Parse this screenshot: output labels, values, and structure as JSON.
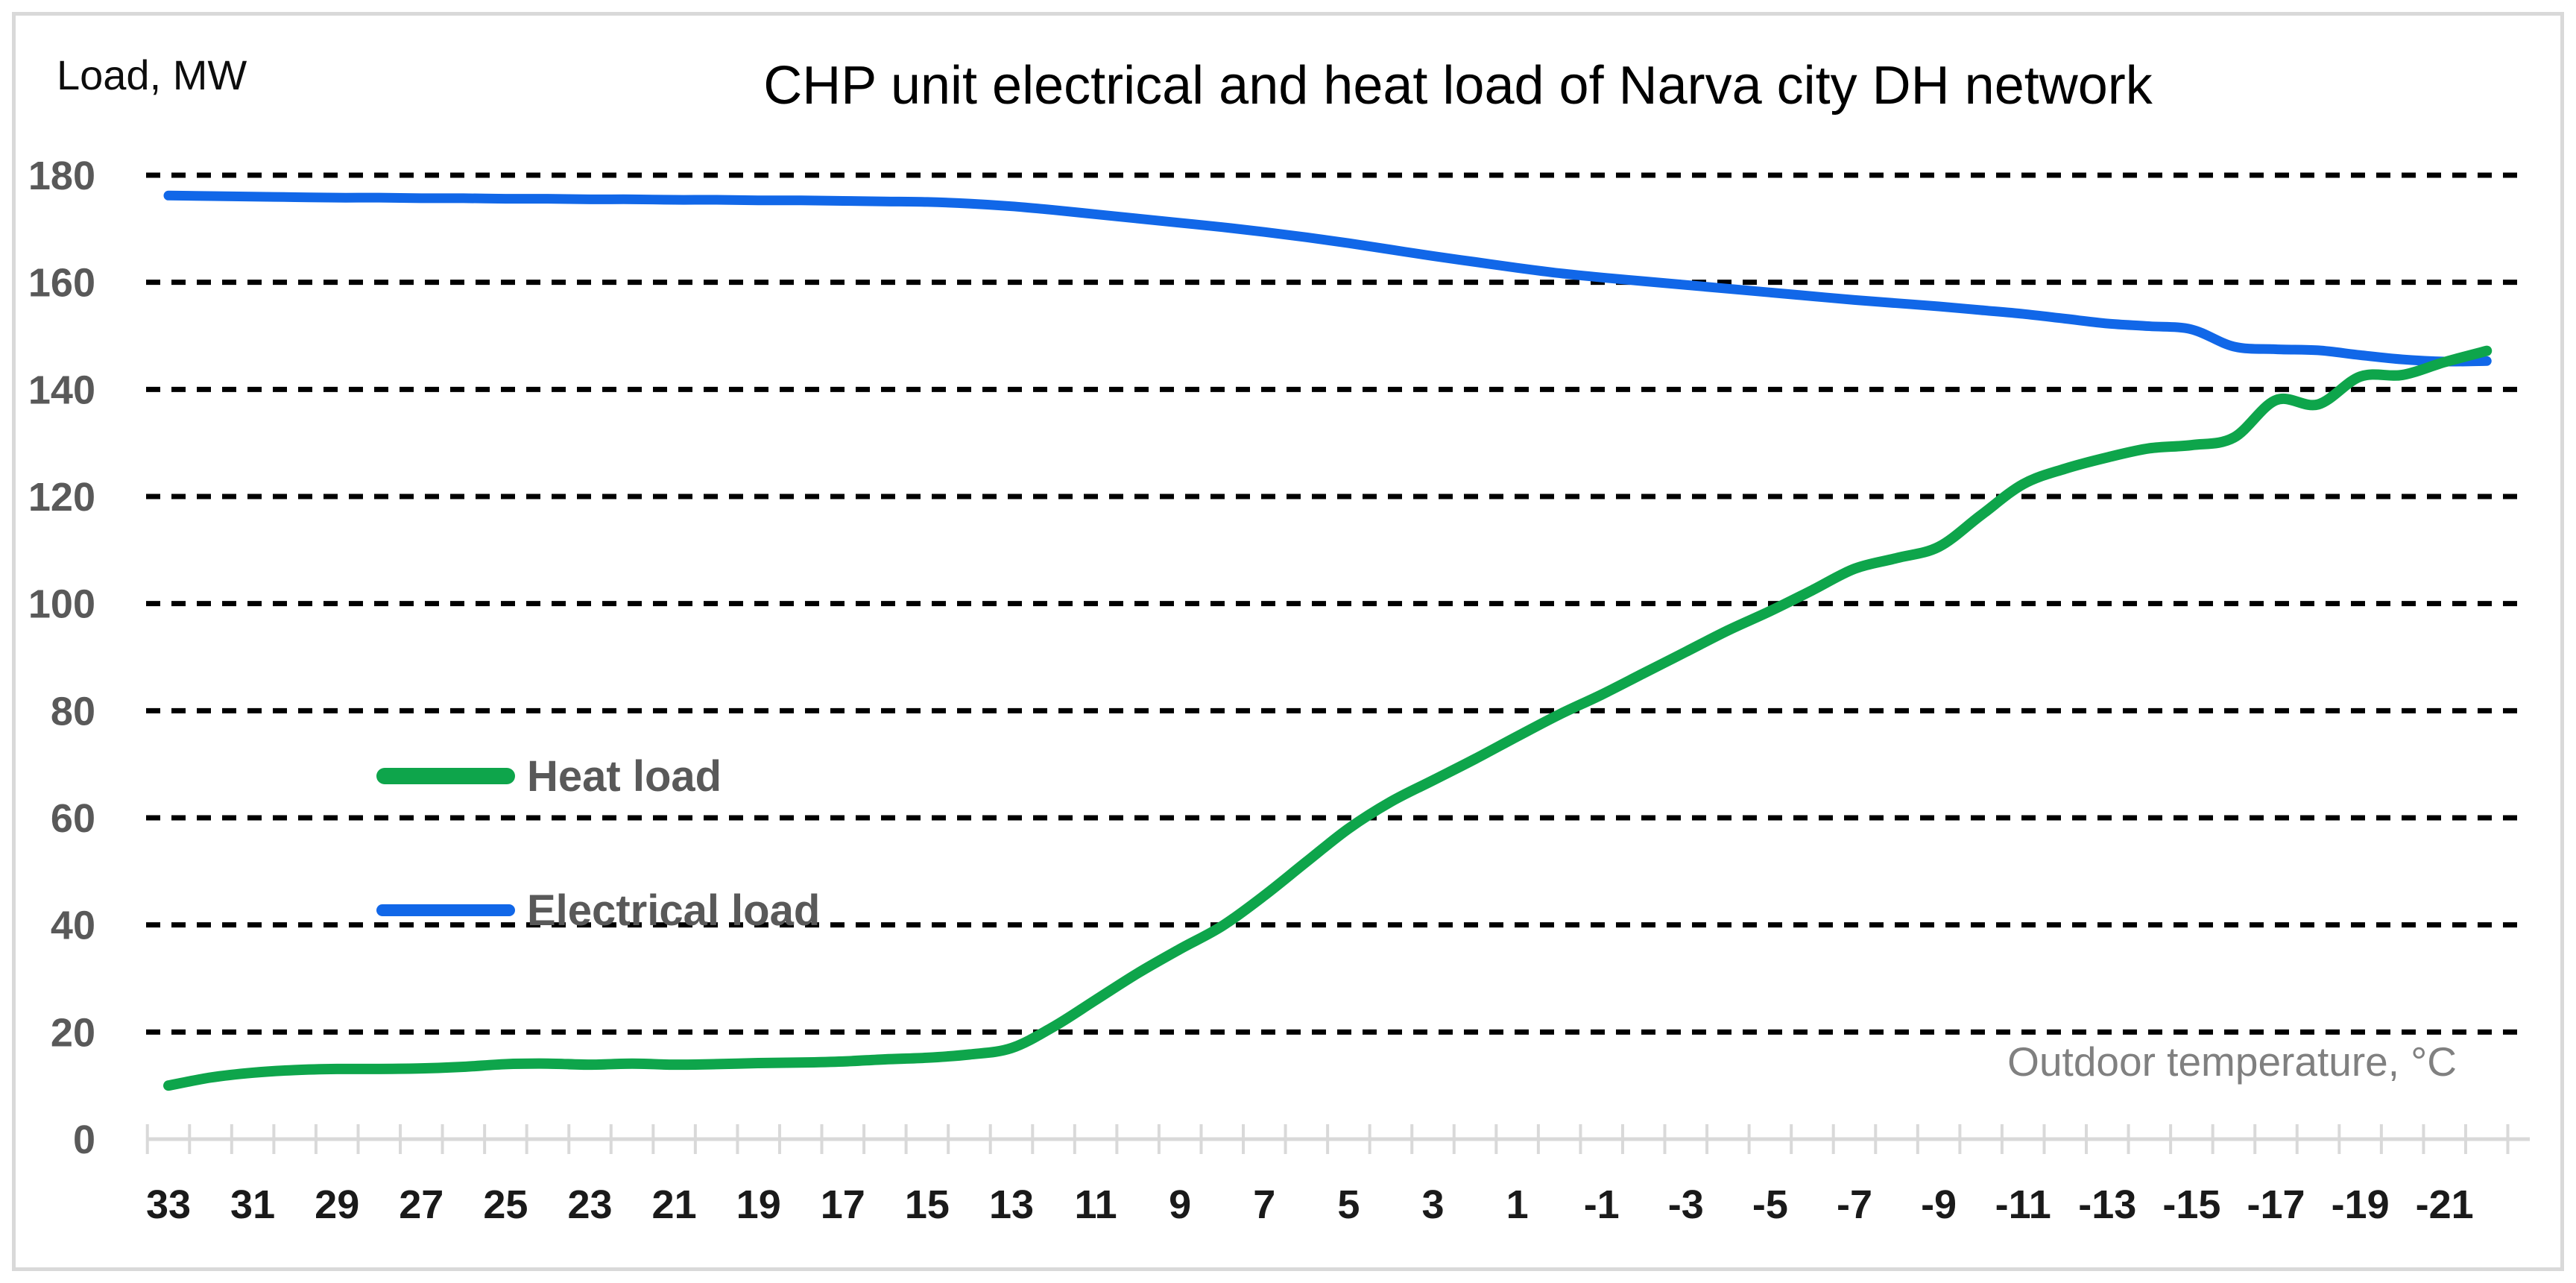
{
  "chart": {
    "title": "CHP unit electrical and heat load of Narva city DH network",
    "y_axis_title": "Load, MW",
    "x_axis_title": "Outdoor temperature, °C",
    "legend": {
      "items": [
        {
          "label": "Heat load",
          "color": "#0EA54B"
        },
        {
          "label": "Electrical load",
          "color": "#1167E8"
        }
      ]
    }
  },
  "colors": {
    "background": "#FFFFFF",
    "border": "#D9D9D9",
    "grid": "#000000",
    "axis": "#D9D9D9",
    "tick": "#D9D9D9",
    "title_text": "#000000",
    "y_tick_label": "#595959",
    "x_tick_label": "#1A1A1A",
    "x_axis_title_text": "#808080",
    "legend_text": "#595959",
    "heat_load": "#0EA54B",
    "electrical_load": "#1167E8"
  },
  "chart_data": {
    "type": "line",
    "title": "CHP unit electrical and heat load of Narva city DH network",
    "xlabel": "Outdoor temperature, °C",
    "ylabel": "Load, MW",
    "x_axis_direction": "descending",
    "line_style": "smooth",
    "grid": "horizontal-dashed",
    "legend_position": "inside-left",
    "ylim": [
      0,
      180
    ],
    "y_ticks": [
      0,
      20,
      40,
      60,
      80,
      100,
      120,
      140,
      160,
      180
    ],
    "x_tick_labels": [
      "33",
      "31",
      "29",
      "27",
      "25",
      "23",
      "21",
      "19",
      "17",
      "15",
      "13",
      "11",
      "9",
      "7",
      "5",
      "3",
      "1",
      "-1",
      "-3",
      "-5",
      "-7",
      "-9",
      "-11",
      "-13",
      "-15",
      "-17",
      "-19",
      "-21"
    ],
    "x": [
      33,
      32,
      31,
      30,
      29,
      28,
      27,
      26,
      25,
      24,
      23,
      22,
      21,
      20,
      19,
      18,
      17,
      16,
      15,
      14,
      13,
      12,
      11,
      10,
      9,
      8,
      7,
      6,
      5,
      4,
      3,
      2,
      1,
      0,
      -1,
      -2,
      -3,
      -4,
      -5,
      -6,
      -7,
      -8,
      -9,
      -10,
      -11,
      -12,
      -13,
      -14,
      -15,
      -16,
      -17,
      -18,
      -19,
      -20,
      -21,
      -22
    ],
    "series": [
      {
        "name": "Heat load",
        "color": "#0EA54B",
        "values": [
          10,
          11.5,
          12.4,
          12.9,
          13.1,
          13.1,
          13.2,
          13.5,
          14,
          14.1,
          13.9,
          14.1,
          13.9,
          14,
          14.2,
          14.3,
          14.5,
          14.9,
          15.2,
          15.8,
          17,
          21,
          26,
          31,
          35.5,
          39.8,
          45.5,
          51.8,
          58,
          63,
          67,
          71,
          75.2,
          79.3,
          83,
          87,
          91,
          95,
          98.6,
          102.5,
          106.5,
          108.5,
          110.6,
          116.5,
          122.3,
          125.2,
          127.3,
          129,
          129.6,
          131,
          138,
          137.2,
          142.4,
          142.7,
          145.1,
          147.2
        ]
      },
      {
        "name": "Electrical load",
        "color": "#1167E8",
        "values": [
          176.2,
          176.1,
          176,
          175.9,
          175.8,
          175.8,
          175.7,
          175.7,
          175.6,
          175.6,
          175.5,
          175.5,
          175.4,
          175.4,
          175.3,
          175.3,
          175.2,
          175.1,
          175,
          174.7,
          174.2,
          173.5,
          172.7,
          171.9,
          171.1,
          170.3,
          169.4,
          168.4,
          167.3,
          166.1,
          164.9,
          163.8,
          162.7,
          161.7,
          160.9,
          160.2,
          159.5,
          158.8,
          158.1,
          157.4,
          156.7,
          156.1,
          155.5,
          154.8,
          154.1,
          153.2,
          152.3,
          151.8,
          151.2,
          148,
          147.5,
          147.3,
          146.4,
          145.6,
          145.2,
          145.3
        ]
      }
    ]
  }
}
